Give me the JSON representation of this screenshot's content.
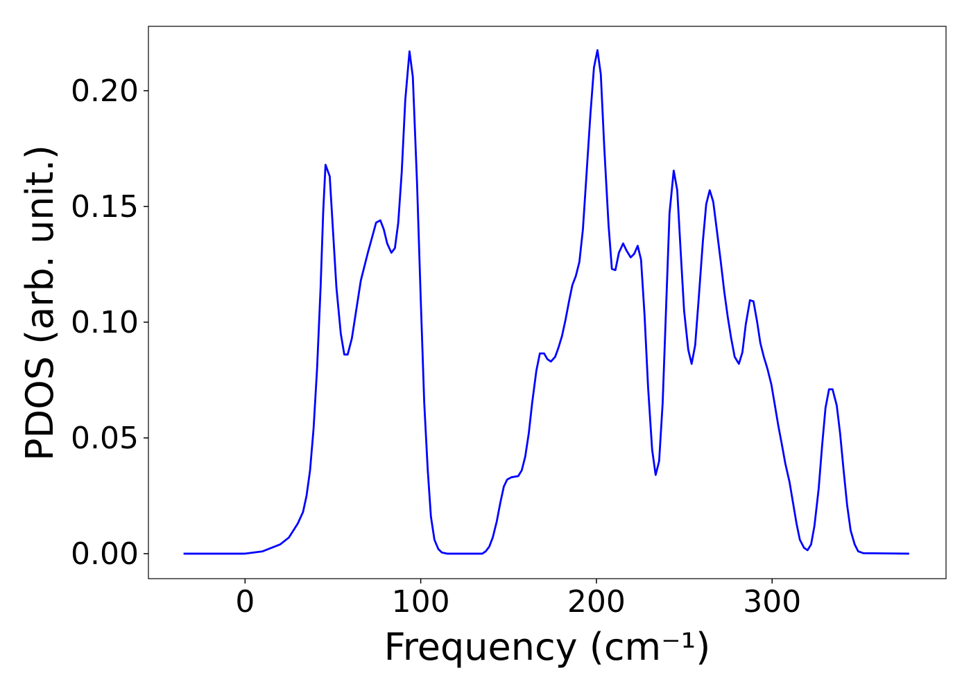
{
  "chart_data": {
    "type": "line",
    "xlabel": "Frequency (cm⁻¹)",
    "ylabel": "PDOS (arb. unit.)",
    "color": "#0000ff",
    "xlim": [
      -55,
      399
    ],
    "ylim": [
      -0.0108,
      0.2278
    ],
    "xticks": [
      0,
      100,
      200,
      300
    ],
    "yticks": [
      {
        "value": 0,
        "label": "0.00"
      },
      {
        "value": 0.05,
        "label": "0.05"
      },
      {
        "value": 0.1,
        "label": "0.10"
      },
      {
        "value": 0.15,
        "label": "0.15"
      },
      {
        "value": 0.2,
        "label": "0.20"
      }
    ],
    "x": [
      -35,
      0,
      10,
      20,
      25,
      30,
      33,
      35,
      37,
      39,
      41,
      43,
      44.5,
      45.8,
      48.2,
      52,
      54.5,
      56.5,
      58.4,
      60.8,
      65.9,
      69.9,
      74.6,
      77,
      79,
      80.9,
      83.3,
      85.3,
      87.2,
      89.2,
      91.2,
      93.6,
      95.5,
      97.9,
      100,
      102,
      104,
      105.8,
      107.8,
      110,
      112,
      115,
      135,
      137,
      139,
      141,
      143.3,
      145.3,
      147.3,
      149.2,
      151.6,
      155.5,
      157.5,
      159.5,
      161.5,
      163.4,
      165.8,
      167.8,
      170.2,
      172.1,
      174.1,
      176.5,
      178.4,
      180.4,
      182.4,
      184.4,
      186.3,
      188.3,
      190.3,
      192.3,
      194.2,
      196.6,
      198.6,
      200.6,
      202.5,
      204.5,
      206.9,
      208.8,
      210.8,
      212.8,
      215.2,
      217.1,
      219.5,
      221.5,
      223.5,
      225.4,
      227.4,
      229.4,
      231.7,
      233.7,
      235.7,
      237.7,
      239.6,
      241.6,
      244,
      246,
      248,
      249.9,
      252.3,
      254.2,
      256.2,
      258.2,
      260.6,
      262.5,
      264.5,
      266.5,
      268.5,
      270.8,
      272.8,
      274.8,
      276.7,
      278.7,
      281.1,
      283.1,
      285,
      287.4,
      289.4,
      291.4,
      293.3,
      295.3,
      297.3,
      299.6,
      301.6,
      303.6,
      305.6,
      307.5,
      309.9,
      311.9,
      313.9,
      315.8,
      318.2,
      320.2,
      322.2,
      324.1,
      326.5,
      328.5,
      330.4,
      332.4,
      334.4,
      336.8,
      338.7,
      340.7,
      342.7,
      344.7,
      347,
      349,
      352,
      378
    ],
    "values": [
      0,
      0,
      0.001,
      0.004,
      0.007,
      0.013,
      0.018,
      0.025,
      0.036,
      0.054,
      0.08,
      0.115,
      0.148,
      0.168,
      0.163,
      0.115,
      0.095,
      0.086,
      0.086,
      0.093,
      0.118,
      0.13,
      0.143,
      0.144,
      0.14,
      0.134,
      0.13,
      0.132,
      0.143,
      0.165,
      0.196,
      0.217,
      0.206,
      0.16,
      0.11,
      0.065,
      0.036,
      0.016,
      0.006,
      0.002,
      0.0005,
      0,
      0,
      0.001,
      0.003,
      0.007,
      0.014,
      0.022,
      0.029,
      0.032,
      0.033,
      0.0335,
      0.036,
      0.042,
      0.052,
      0.065,
      0.079,
      0.0865,
      0.0865,
      0.084,
      0.083,
      0.085,
      0.089,
      0.094,
      0.101,
      0.109,
      0.116,
      0.12,
      0.126,
      0.14,
      0.162,
      0.19,
      0.21,
      0.2175,
      0.207,
      0.175,
      0.142,
      0.123,
      0.1225,
      0.13,
      0.134,
      0.131,
      0.128,
      0.1295,
      0.133,
      0.127,
      0.103,
      0.072,
      0.045,
      0.034,
      0.04,
      0.065,
      0.105,
      0.147,
      0.1655,
      0.157,
      0.13,
      0.105,
      0.088,
      0.082,
      0.09,
      0.11,
      0.135,
      0.151,
      0.157,
      0.152,
      0.14,
      0.126,
      0.113,
      0.102,
      0.093,
      0.085,
      0.082,
      0.087,
      0.099,
      0.1095,
      0.109,
      0.1005,
      0.091,
      0.085,
      0.08,
      0.073,
      0.064,
      0.055,
      0.047,
      0.039,
      0.031,
      0.022,
      0.013,
      0.006,
      0.0025,
      0.0015,
      0.004,
      0.012,
      0.028,
      0.047,
      0.063,
      0.071,
      0.071,
      0.064,
      0.052,
      0.036,
      0.021,
      0.01,
      0.004,
      0.001,
      0.0002,
      0
    ]
  }
}
